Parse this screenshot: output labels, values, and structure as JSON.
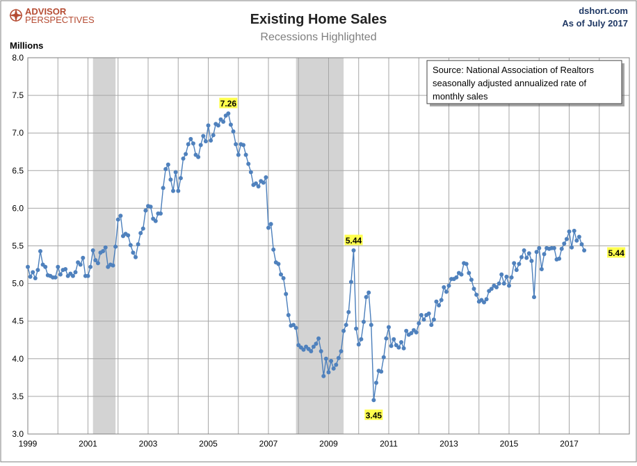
{
  "header": {
    "logo_line1": "ADVISOR",
    "logo_line2": "PERSPECTIVES",
    "title": "Existing Home Sales",
    "subtitle": "Recessions Highlighted",
    "site": "dshort.com",
    "asof": "As of July 2017"
  },
  "source_box": {
    "lines": [
      "Source:  National Association of Realtors",
      "seasonally adjusted annualized rate of",
      "monthly  sales"
    ]
  },
  "colors": {
    "line": "#4a7ebb",
    "marker": "#4f81bd",
    "recession": "#d3d3d3",
    "grid": "#a6a6a6",
    "callout_bg": "#ffff4d",
    "title": "#222222",
    "subtitle": "#7f7f7f",
    "header_right": "#1f3864",
    "logo": "#b54b32"
  },
  "chart_data": {
    "type": "line",
    "title": "Existing Home Sales",
    "subtitle": "Recessions Highlighted",
    "ylabel": "Millions",
    "xlabel": "",
    "ylim": [
      3.0,
      8.0
    ],
    "xlim": [
      "1999-01",
      "2018-12"
    ],
    "y_ticks": [
      "3.0",
      "3.5",
      "4.0",
      "4.5",
      "5.0",
      "5.5",
      "6.0",
      "6.5",
      "7.0",
      "7.5",
      "8.0"
    ],
    "x_ticks": [
      "1999",
      "2001",
      "2003",
      "2005",
      "2007",
      "2009",
      "2011",
      "2013",
      "2015",
      "2017"
    ],
    "grid": true,
    "recessions": [
      {
        "start": "2001-03",
        "end": "2001-11"
      },
      {
        "start": "2007-12",
        "end": "2009-06"
      }
    ],
    "series": [
      {
        "start": "1999-01",
        "frequency": "monthly",
        "values": [
          5.22,
          5.09,
          5.15,
          5.07,
          5.18,
          5.43,
          5.25,
          5.22,
          5.11,
          5.1,
          5.08,
          5.08,
          5.22,
          5.12,
          5.18,
          5.19,
          5.1,
          5.13,
          5.1,
          5.15,
          5.28,
          5.25,
          5.34,
          5.1,
          5.1,
          5.22,
          5.44,
          5.31,
          5.27,
          5.41,
          5.43,
          5.48,
          5.22,
          5.25,
          5.24,
          5.49,
          5.85,
          5.9,
          5.63,
          5.66,
          5.64,
          5.51,
          5.41,
          5.35,
          5.52,
          5.67,
          5.73,
          5.97,
          6.03,
          6.02,
          5.86,
          5.83,
          5.93,
          5.93,
          6.27,
          6.52,
          6.58,
          6.38,
          6.23,
          6.48,
          6.23,
          6.4,
          6.66,
          6.72,
          6.85,
          6.92,
          6.86,
          6.71,
          6.68,
          6.84,
          6.96,
          6.89,
          7.1,
          6.9,
          6.97,
          7.12,
          7.1,
          7.18,
          7.15,
          7.23,
          7.26,
          7.11,
          7.02,
          6.85,
          6.71,
          6.85,
          6.84,
          6.71,
          6.59,
          6.48,
          6.31,
          6.33,
          6.29,
          6.36,
          6.34,
          6.41,
          5.74,
          5.79,
          5.45,
          5.28,
          5.26,
          5.12,
          5.07,
          4.86,
          4.58,
          4.44,
          4.45,
          4.41,
          4.18,
          4.15,
          4.12,
          4.16,
          4.13,
          4.1,
          4.16,
          4.2,
          4.27,
          4.1,
          3.77,
          4.0,
          3.82,
          3.97,
          3.87,
          3.92,
          4.01,
          4.1,
          4.37,
          4.45,
          4.62,
          5.02,
          5.44,
          4.4,
          4.19,
          4.26,
          4.49,
          4.82,
          4.88,
          4.45,
          3.45,
          3.68,
          3.84,
          3.83,
          4.02,
          4.27,
          4.42,
          4.17,
          4.26,
          4.18,
          4.15,
          4.22,
          4.14,
          4.37,
          4.32,
          4.34,
          4.38,
          4.35,
          4.47,
          4.58,
          4.52,
          4.58,
          4.6,
          4.45,
          4.52,
          4.76,
          4.71,
          4.78,
          4.95,
          4.89,
          4.97,
          5.06,
          5.06,
          5.08,
          5.14,
          5.12,
          5.27,
          5.26,
          5.14,
          5.05,
          4.93,
          4.85,
          4.76,
          4.78,
          4.75,
          4.79,
          4.9,
          4.93,
          4.97,
          4.95,
          5.0,
          5.12,
          5.0,
          5.09,
          4.97,
          5.08,
          5.27,
          5.18,
          5.26,
          5.35,
          5.44,
          5.34,
          5.4,
          5.3,
          4.82,
          5.42,
          5.47,
          5.19,
          5.39,
          5.47,
          5.46,
          5.47,
          5.47,
          5.32,
          5.33,
          5.46,
          5.53,
          5.59,
          5.69,
          5.48,
          5.7,
          5.57,
          5.62,
          5.52,
          5.44
        ]
      }
    ],
    "annotations": [
      {
        "label": "7.26",
        "date": "2005-09",
        "value": 7.26
      },
      {
        "label": "5.44",
        "date": "2009-11",
        "value": 5.44
      },
      {
        "label": "3.45",
        "date": "2010-07",
        "value": 3.45
      },
      {
        "label": "5.44",
        "date": "2017-07",
        "value": 5.44
      }
    ]
  }
}
